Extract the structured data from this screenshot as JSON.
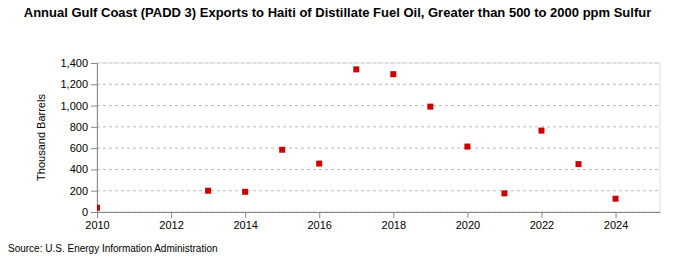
{
  "chart_data": {
    "type": "scatter",
    "title": "Annual Gulf Coast (PADD 3) Exports to Haiti of Distillate Fuel Oil, Greater than 500 to 2000 ppm Sulfur",
    "y_label": "Thousand Barrels",
    "source": "Source: U.S. Energy Information Administration",
    "x": [
      2010,
      2013,
      2014,
      2015,
      2016,
      2017,
      2018,
      2019,
      2020,
      2021,
      2022,
      2023,
      2024
    ],
    "values": [
      40,
      200,
      190,
      585,
      455,
      1340,
      1295,
      990,
      615,
      175,
      765,
      450,
      125
    ],
    "color": "#cc0000",
    "marker": "square",
    "xlim": [
      2010,
      2025.2
    ],
    "xticks": [
      2010,
      2012,
      2014,
      2016,
      2018,
      2020,
      2022,
      2024
    ],
    "ylim": [
      0,
      1400
    ],
    "yticks": [
      0,
      200,
      400,
      600,
      800,
      {
        "value": 1000,
        "label": "1,000"
      },
      {
        "value": 1200,
        "label": "1,200"
      },
      {
        "value": 1400,
        "label": "1,400"
      }
    ],
    "grid": true
  }
}
